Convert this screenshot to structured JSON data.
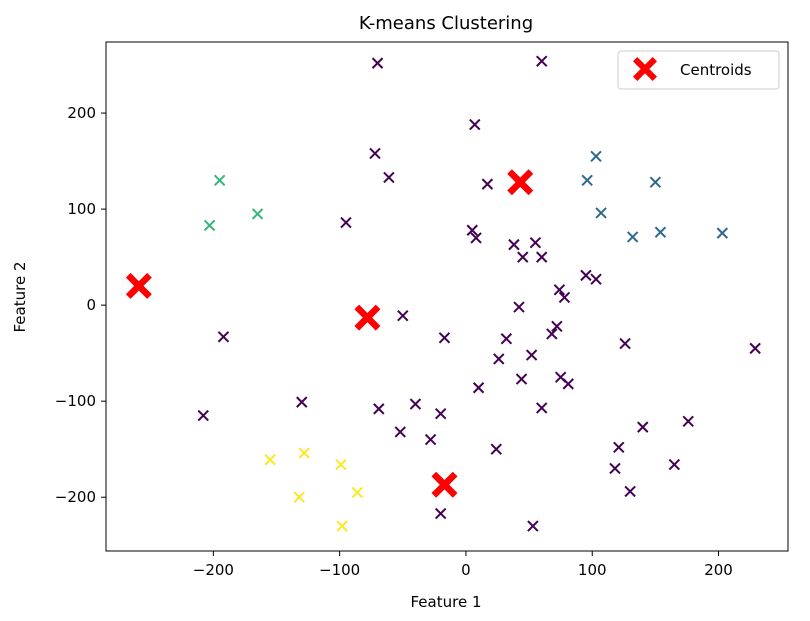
{
  "chart_data": {
    "type": "scatter",
    "title": "K-means Clustering",
    "xlabel": "Feature 1",
    "ylabel": "Feature 2",
    "xlim": [
      -285,
      255
    ],
    "ylim": [
      -256,
      274
    ],
    "xticks": [
      -200,
      -100,
      0,
      100,
      200
    ],
    "yticks": [
      -200,
      -100,
      0,
      100,
      200
    ],
    "xtick_labels": [
      "−200",
      "−100",
      "0",
      "100",
      "200"
    ],
    "ytick_labels": [
      "−200",
      "−100",
      "0",
      "100",
      "200"
    ],
    "grid": false,
    "legend": {
      "location": "top-right",
      "entries": [
        "Centroids"
      ]
    },
    "colors": {
      "cluster0": "#440154",
      "cluster1": "#31688e",
      "cluster2": "#35b779",
      "cluster3": "#fde725",
      "centroid": "#ff0000"
    },
    "series": [
      {
        "name": "cluster 0",
        "color": "#440154",
        "points": [
          [
            -70,
            252
          ],
          [
            60,
            254
          ],
          [
            7,
            188
          ],
          [
            -72,
            158
          ],
          [
            -61,
            133
          ],
          [
            17,
            126
          ],
          [
            -95,
            86
          ],
          [
            5,
            78
          ],
          [
            8,
            70
          ],
          [
            38,
            63
          ],
          [
            55,
            65
          ],
          [
            45,
            50
          ],
          [
            60,
            50
          ],
          [
            95,
            31
          ],
          [
            103,
            27
          ],
          [
            74,
            16
          ],
          [
            78,
            8
          ],
          [
            42,
            -2
          ],
          [
            -50,
            -11
          ],
          [
            72,
            -22
          ],
          [
            68,
            -30
          ],
          [
            -17,
            -34
          ],
          [
            -192,
            -33
          ],
          [
            32,
            -35
          ],
          [
            126,
            -40
          ],
          [
            229,
            -45
          ],
          [
            52,
            -52
          ],
          [
            26,
            -56
          ],
          [
            44,
            -77
          ],
          [
            75,
            -75
          ],
          [
            81,
            -82
          ],
          [
            10,
            -86
          ],
          [
            -130,
            -101
          ],
          [
            -40,
            -103
          ],
          [
            60,
            -107
          ],
          [
            -69,
            -108
          ],
          [
            -20,
            -113
          ],
          [
            -208,
            -115
          ],
          [
            176,
            -121
          ],
          [
            140,
            -127
          ],
          [
            -52,
            -132
          ],
          [
            -28,
            -140
          ],
          [
            121,
            -148
          ],
          [
            24,
            -150
          ],
          [
            165,
            -166
          ],
          [
            118,
            -170
          ],
          [
            130,
            -194
          ],
          [
            -20,
            -217
          ],
          [
            53,
            -230
          ]
        ]
      },
      {
        "name": "cluster 1",
        "color": "#31688e",
        "points": [
          [
            103,
            155
          ],
          [
            150,
            128
          ],
          [
            96,
            130
          ],
          [
            107,
            96
          ],
          [
            132,
            71
          ],
          [
            154,
            76
          ],
          [
            203,
            75
          ]
        ]
      },
      {
        "name": "cluster 2",
        "color": "#35b779",
        "points": [
          [
            -195,
            130
          ],
          [
            -165,
            95
          ],
          [
            -203,
            83
          ]
        ]
      },
      {
        "name": "cluster 3",
        "color": "#fde725",
        "points": [
          [
            -155,
            -161
          ],
          [
            -128,
            -154
          ],
          [
            -99,
            -166
          ],
          [
            -132,
            -200
          ],
          [
            -86,
            -195
          ],
          [
            -98,
            -230
          ]
        ]
      },
      {
        "name": "Centroids",
        "color": "#ff0000",
        "points": [
          [
            -259,
            20
          ],
          [
            -78,
            -13
          ],
          [
            43,
            128
          ],
          [
            -17,
            -187
          ]
        ]
      }
    ]
  }
}
